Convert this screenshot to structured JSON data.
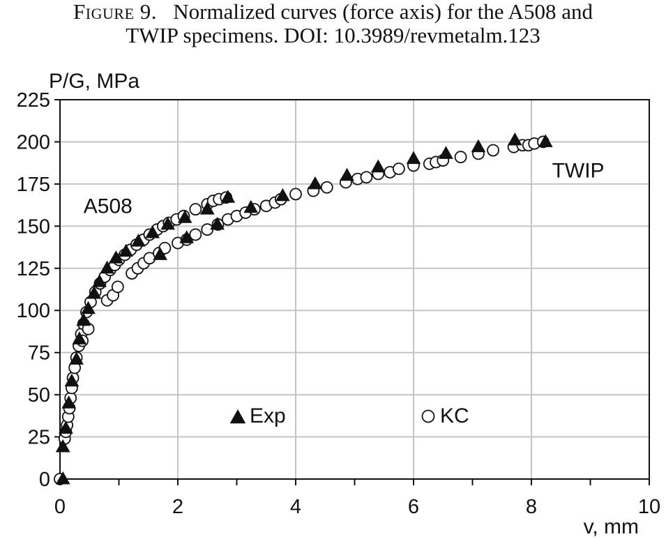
{
  "caption": {
    "label": "Figure 9.",
    "text": "Normalized curves (force axis) for the A508 and",
    "text2": "TWIP specimens. DOI: 10.3989/revmetalm.123"
  },
  "chart_data": {
    "type": "scatter",
    "ylabel": "P/G, MPa",
    "xlabel": "v, mm",
    "xlim": [
      0,
      10
    ],
    "ylim": [
      0,
      225
    ],
    "xticks": [
      0,
      2,
      4,
      6,
      8,
      10
    ],
    "yticks": [
      0,
      25,
      50,
      75,
      100,
      125,
      150,
      175,
      200,
      225
    ],
    "grid": true,
    "annotations": [
      {
        "text": "A508",
        "x": 0.4,
        "y": 162
      },
      {
        "text": "TWIP",
        "x": 8.35,
        "y": 183
      }
    ],
    "legend": [
      {
        "name": "Exp",
        "marker": "triangle-filled"
      },
      {
        "name": "KC",
        "marker": "circle-open"
      }
    ],
    "series": [
      {
        "name": "Exp",
        "marker": "triangle",
        "points": [
          [
            0.05,
            0
          ],
          [
            0.05,
            19
          ],
          [
            0.1,
            30
          ],
          [
            0.15,
            45
          ],
          [
            0.2,
            58
          ],
          [
            0.28,
            71
          ],
          [
            0.33,
            83
          ],
          [
            0.4,
            94
          ],
          [
            0.48,
            101
          ],
          [
            0.58,
            110
          ],
          [
            0.67,
            117
          ],
          [
            0.8,
            125
          ],
          [
            0.95,
            131
          ],
          [
            1.12,
            135
          ],
          [
            1.33,
            141
          ],
          [
            1.57,
            146
          ],
          [
            1.83,
            151
          ],
          [
            2.12,
            155
          ],
          [
            2.5,
            160
          ],
          [
            2.85,
            167
          ],
          [
            1.7,
            133
          ],
          [
            2.15,
            143
          ],
          [
            2.67,
            151
          ],
          [
            3.24,
            161
          ],
          [
            3.78,
            168
          ],
          [
            4.33,
            175
          ],
          [
            4.87,
            180
          ],
          [
            5.4,
            185
          ],
          [
            6.0,
            190
          ],
          [
            6.55,
            193
          ],
          [
            7.1,
            197
          ],
          [
            7.72,
            201
          ],
          [
            8.24,
            200
          ]
        ]
      },
      {
        "name": "KC",
        "marker": "circle",
        "points": [
          [
            0.0,
            0
          ],
          [
            0.08,
            24
          ],
          [
            0.1,
            28
          ],
          [
            0.12,
            32
          ],
          [
            0.14,
            37
          ],
          [
            0.16,
            42
          ],
          [
            0.18,
            48
          ],
          [
            0.2,
            54
          ],
          [
            0.22,
            60
          ],
          [
            0.25,
            66
          ],
          [
            0.28,
            72
          ],
          [
            0.32,
            79
          ],
          [
            0.36,
            86
          ],
          [
            0.4,
            92
          ],
          [
            0.45,
            99
          ],
          [
            0.52,
            105
          ],
          [
            0.6,
            111
          ],
          [
            0.68,
            116
          ],
          [
            0.76,
            120
          ],
          [
            0.85,
            124
          ],
          [
            0.93,
            127
          ],
          [
            1.0,
            130
          ],
          [
            1.1,
            133
          ],
          [
            1.2,
            136
          ],
          [
            1.3,
            139
          ],
          [
            1.42,
            142
          ],
          [
            1.52,
            145
          ],
          [
            1.65,
            148
          ],
          [
            1.75,
            150
          ],
          [
            1.85,
            152
          ],
          [
            1.98,
            154
          ],
          [
            2.1,
            156
          ],
          [
            2.3,
            160
          ],
          [
            2.5,
            163
          ],
          [
            2.6,
            165
          ],
          [
            2.7,
            166
          ],
          [
            2.82,
            167
          ],
          [
            0.38,
            82
          ],
          [
            0.48,
            89
          ],
          [
            0.8,
            106
          ],
          [
            0.9,
            109
          ],
          [
            0.98,
            114
          ],
          [
            1.22,
            122
          ],
          [
            1.32,
            125
          ],
          [
            1.42,
            128
          ],
          [
            1.52,
            131
          ],
          [
            1.68,
            134
          ],
          [
            1.78,
            137
          ],
          [
            2.0,
            140
          ],
          [
            2.15,
            142
          ],
          [
            2.3,
            145
          ],
          [
            2.5,
            148
          ],
          [
            2.68,
            151
          ],
          [
            2.85,
            154
          ],
          [
            3.0,
            156
          ],
          [
            3.15,
            158
          ],
          [
            3.3,
            160
          ],
          [
            3.5,
            162
          ],
          [
            3.65,
            164
          ],
          [
            3.75,
            166
          ],
          [
            4.0,
            169
          ],
          [
            4.3,
            171
          ],
          [
            4.53,
            173
          ],
          [
            4.85,
            176
          ],
          [
            5.05,
            178
          ],
          [
            5.2,
            179
          ],
          [
            5.4,
            181
          ],
          [
            5.6,
            182
          ],
          [
            5.75,
            184
          ],
          [
            6.0,
            186
          ],
          [
            6.27,
            187
          ],
          [
            6.38,
            188
          ],
          [
            6.5,
            189
          ],
          [
            6.8,
            191
          ],
          [
            7.1,
            193
          ],
          [
            7.35,
            195
          ],
          [
            7.7,
            197
          ],
          [
            7.85,
            198
          ],
          [
            7.95,
            198
          ],
          [
            8.05,
            199
          ],
          [
            8.2,
            200
          ]
        ]
      }
    ]
  }
}
